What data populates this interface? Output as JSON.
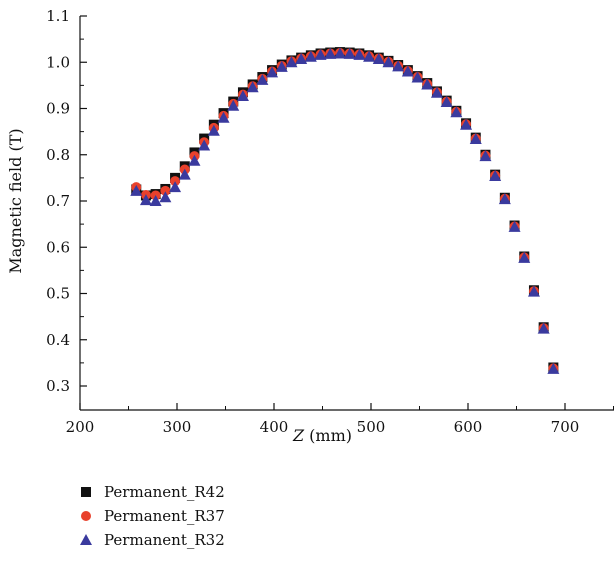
{
  "chart_data": {
    "type": "scatter",
    "xlabel_italic": "Z",
    "xlabel_unit": " (mm)",
    "ylabel": "Magnetic field (T)",
    "xlim": [
      200,
      750
    ],
    "ylim": [
      0.25,
      1.1
    ],
    "xticks": [
      200,
      300,
      400,
      500,
      600,
      700
    ],
    "yticks": [
      0.3,
      0.4,
      0.5,
      0.6,
      0.7,
      0.8,
      0.9,
      1.0,
      1.1
    ],
    "ytick_labels": [
      "0.3",
      "0.4",
      "0.5",
      "0.6",
      "0.7",
      "0.8",
      "0.9",
      "1.0",
      "1.1"
    ],
    "legend_position": "bottom-left",
    "x": [
      258,
      268,
      278,
      288,
      298,
      308,
      318,
      328,
      338,
      348,
      358,
      368,
      378,
      388,
      398,
      408,
      418,
      428,
      438,
      448,
      458,
      468,
      478,
      488,
      498,
      508,
      518,
      528,
      538,
      548,
      558,
      568,
      578,
      588,
      598,
      608,
      618,
      628,
      638,
      648,
      658,
      668,
      678,
      688
    ],
    "series": [
      {
        "name": "Permanent_R42",
        "marker": "square",
        "color": "#111111",
        "values": [
          0.725,
          0.712,
          0.715,
          0.726,
          0.75,
          0.775,
          0.805,
          0.835,
          0.865,
          0.89,
          0.915,
          0.935,
          0.952,
          0.968,
          0.983,
          0.995,
          1.004,
          1.01,
          1.015,
          1.019,
          1.021,
          1.022,
          1.021,
          1.019,
          1.015,
          1.01,
          1.003,
          0.994,
          0.983,
          0.97,
          0.955,
          0.937,
          0.917,
          0.895,
          0.868,
          0.837,
          0.8,
          0.757,
          0.707,
          0.647,
          0.58,
          0.507,
          0.427,
          0.34
        ]
      },
      {
        "name": "Permanent_R37",
        "marker": "circle",
        "color": "#e8412c",
        "values": [
          0.73,
          0.713,
          0.712,
          0.722,
          0.743,
          0.768,
          0.797,
          0.827,
          0.858,
          0.884,
          0.91,
          0.93,
          0.948,
          0.964,
          0.98,
          0.992,
          1.002,
          1.008,
          1.013,
          1.017,
          1.019,
          1.02,
          1.019,
          1.017,
          1.013,
          1.008,
          1.001,
          0.992,
          0.981,
          0.968,
          0.953,
          0.935,
          0.915,
          0.893,
          0.866,
          0.835,
          0.798,
          0.755,
          0.705,
          0.645,
          0.578,
          0.505,
          0.425,
          0.338
        ]
      },
      {
        "name": "Permanent_R32",
        "marker": "triangle",
        "color": "#3a3a9e",
        "values": [
          0.722,
          0.702,
          0.7,
          0.708,
          0.73,
          0.757,
          0.787,
          0.82,
          0.852,
          0.88,
          0.906,
          0.927,
          0.946,
          0.962,
          0.978,
          0.99,
          1.0,
          1.007,
          1.012,
          1.016,
          1.018,
          1.019,
          1.018,
          1.016,
          1.012,
          1.007,
          1.0,
          0.991,
          0.98,
          0.967,
          0.952,
          0.934,
          0.914,
          0.892,
          0.865,
          0.834,
          0.797,
          0.754,
          0.704,
          0.644,
          0.577,
          0.504,
          0.424,
          0.337
        ]
      }
    ]
  }
}
